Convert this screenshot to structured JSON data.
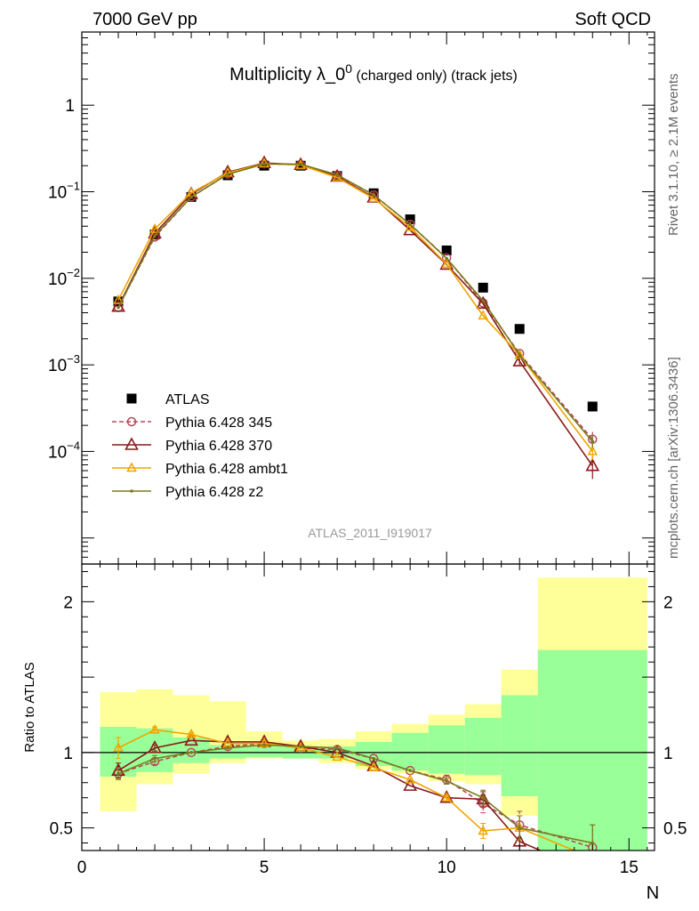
{
  "header": {
    "left": "7000 GeV pp",
    "right": "Soft QCD"
  },
  "title": {
    "main": "Multiplicity λ_0",
    "sup": "0",
    "sub": " (charged only) (track jets)"
  },
  "side_labels": {
    "rivet": "Rivet 3.1.10, ≥ 2.1M events",
    "mcplots": "mcplots.cern.ch [arXiv:1306.3436]"
  },
  "watermark": "ATLAS_2011_I919017",
  "colors": {
    "atlas": "#000000",
    "p345": "#b5495b",
    "p370": "#8b1a1a",
    "ambt1": "#f0a500",
    "z2": "#7a7a1a",
    "band_inner": "#99ff99",
    "band_outer": "#ffff99"
  },
  "chart_data": [
    {
      "type": "scatter",
      "yscale": "log",
      "xlim": [
        0,
        15.7
      ],
      "ylim": [
        5e-06,
        7
      ],
      "yticks": [
        {
          "value": 1,
          "label": "1"
        },
        {
          "value": 0.1,
          "label": "10",
          "exp": "−1"
        },
        {
          "value": 0.01,
          "label": "10",
          "exp": "−2"
        },
        {
          "value": 0.001,
          "label": "10",
          "exp": "−3"
        },
        {
          "value": 0.0001,
          "label": "10",
          "exp": "−4"
        }
      ],
      "legend_position": "lower-left",
      "series": [
        {
          "name": "ATLAS",
          "key": "atlas",
          "marker": "square",
          "x": [
            1,
            2,
            3,
            4,
            5,
            6,
            7,
            8,
            9,
            10,
            11,
            12,
            14
          ],
          "y": [
            0.0054,
            0.032,
            0.087,
            0.155,
            0.2,
            0.2,
            0.152,
            0.096,
            0.048,
            0.021,
            0.0078,
            0.0026,
            0.00033
          ]
        },
        {
          "name": "Pythia 6.428 345",
          "key": "p345",
          "marker": "circle",
          "dash": "5,3",
          "x": [
            1,
            2,
            3,
            4,
            5,
            6,
            7,
            8,
            9,
            10,
            11,
            12,
            14
          ],
          "y": [
            0.0046,
            0.03,
            0.087,
            0.16,
            0.21,
            0.205,
            0.155,
            0.092,
            0.042,
            0.0172,
            0.0052,
            0.00135,
            0.000138
          ],
          "err": [
            0,
            0,
            0,
            0,
            0,
            0,
            0,
            0,
            0,
            0,
            0,
            0.0001,
            3e-05
          ]
        },
        {
          "name": "Pythia 6.428 370",
          "key": "p370",
          "marker": "triangle",
          "x": [
            1,
            2,
            3,
            4,
            5,
            6,
            7,
            8,
            9,
            10,
            11,
            12,
            14
          ],
          "y": [
            0.0047,
            0.033,
            0.094,
            0.168,
            0.215,
            0.205,
            0.15,
            0.086,
            0.036,
            0.0144,
            0.0051,
            0.0011,
            6.8e-05
          ],
          "err": [
            0,
            0,
            0,
            0,
            0,
            0,
            0,
            0,
            0,
            0,
            0,
            0.0001,
            2e-05
          ]
        },
        {
          "name": "Pythia 6.428 ambt1",
          "key": "ambt1",
          "marker": "triangle-small",
          "x": [
            1,
            2,
            3,
            4,
            5,
            6,
            7,
            8,
            9,
            10,
            11,
            12,
            14
          ],
          "y": [
            0.0056,
            0.037,
            0.097,
            0.165,
            0.212,
            0.203,
            0.146,
            0.084,
            0.039,
            0.0146,
            0.0037,
            0.0013,
            0.0001
          ],
          "err": [
            0,
            0,
            0,
            0,
            0,
            0,
            0,
            0,
            0,
            0,
            0,
            0.0001,
            2e-05
          ]
        },
        {
          "name": "Pythia 6.428 z2",
          "key": "z2",
          "marker": "dot",
          "x": [
            1,
            2,
            3,
            4,
            5,
            6,
            7,
            8,
            9,
            10,
            11,
            12,
            14
          ],
          "y": [
            0.0046,
            0.031,
            0.087,
            0.159,
            0.21,
            0.208,
            0.157,
            0.092,
            0.042,
            0.017,
            0.0055,
            0.0013,
            0.00013
          ],
          "err": [
            0,
            0,
            0,
            0,
            0,
            0,
            0,
            0,
            0,
            0,
            0,
            0.0001,
            2e-05
          ]
        }
      ]
    },
    {
      "type": "line",
      "ylabel": "Ratio to ATLAS",
      "xlabel": "N",
      "xlim": [
        0,
        15.7
      ],
      "ylim": [
        0.35,
        2.25
      ],
      "xticks": [
        0,
        5,
        10,
        15
      ],
      "yticks": [
        0.5,
        1,
        2
      ],
      "bands": [
        {
          "x0": 0.5,
          "x1": 1.5,
          "inner": [
            0.84,
            1.17
          ],
          "outer": [
            0.61,
            1.4
          ]
        },
        {
          "x0": 1.5,
          "x1": 2.5,
          "inner": [
            0.87,
            1.16
          ],
          "outer": [
            0.79,
            1.42
          ]
        },
        {
          "x0": 2.5,
          "x1": 3.5,
          "inner": [
            0.93,
            1.1
          ],
          "outer": [
            0.86,
            1.38
          ]
        },
        {
          "x0": 3.5,
          "x1": 4.5,
          "inner": [
            0.96,
            1.05
          ],
          "outer": [
            0.93,
            1.34
          ]
        },
        {
          "x0": 4.5,
          "x1": 5.5,
          "inner": [
            0.97,
            1.05
          ],
          "outer": [
            0.96,
            1.14
          ]
        },
        {
          "x0": 5.5,
          "x1": 6.5,
          "inner": [
            0.96,
            1.04
          ],
          "outer": [
            0.96,
            1.08
          ]
        },
        {
          "x0": 6.5,
          "x1": 7.5,
          "inner": [
            0.96,
            1.04
          ],
          "outer": [
            0.93,
            1.09
          ]
        },
        {
          "x0": 7.5,
          "x1": 8.5,
          "inner": [
            0.91,
            1.07
          ],
          "outer": [
            0.89,
            1.14
          ]
        },
        {
          "x0": 8.5,
          "x1": 9.5,
          "inner": [
            0.88,
            1.13
          ],
          "outer": [
            0.86,
            1.19
          ]
        },
        {
          "x0": 9.5,
          "x1": 10.5,
          "inner": [
            0.86,
            1.18
          ],
          "outer": [
            0.81,
            1.25
          ]
        },
        {
          "x0": 10.5,
          "x1": 11.5,
          "inner": [
            0.85,
            1.23
          ],
          "outer": [
            0.79,
            1.32
          ]
        },
        {
          "x0": 11.5,
          "x1": 12.5,
          "inner": [
            0.71,
            1.38
          ],
          "outer": [
            0.58,
            1.55
          ]
        },
        {
          "x0": 12.5,
          "x1": 15.5,
          "inner": [
            0.35,
            1.68
          ],
          "outer": [
            0.35,
            2.16
          ]
        }
      ],
      "series": [
        {
          "name": "Pythia 6.428 345",
          "key": "p345",
          "marker": "circle",
          "dash": "5,3",
          "x": [
            1,
            2,
            3,
            4,
            5,
            6,
            7,
            8,
            9,
            10,
            11,
            12,
            14
          ],
          "y": [
            0.86,
            0.94,
            1.0,
            1.04,
            1.06,
            1.03,
            1.02,
            0.96,
            0.88,
            0.82,
            0.66,
            0.52,
            0.37
          ],
          "err": [
            0.03,
            0.02,
            0,
            0,
            0,
            0,
            0,
            0,
            0,
            0.03,
            0.06,
            0.09,
            0.15
          ]
        },
        {
          "name": "Pythia 6.428 370",
          "key": "p370",
          "marker": "triangle",
          "x": [
            1,
            2,
            3,
            4,
            5,
            6,
            7,
            8,
            9,
            10,
            11,
            12,
            14
          ],
          "y": [
            0.88,
            1.03,
            1.08,
            1.07,
            1.07,
            1.04,
            1.0,
            0.91,
            0.78,
            0.7,
            0.69,
            0.41,
            0.2
          ],
          "err": [
            0.05,
            0.02,
            0,
            0,
            0,
            0,
            0,
            0,
            0,
            0.02,
            0.05,
            0.08,
            0.1
          ]
        },
        {
          "name": "Pythia 6.428 ambt1",
          "key": "ambt1",
          "marker": "triangle-small",
          "x": [
            1,
            2,
            3,
            4,
            5,
            6,
            7,
            8,
            9,
            10,
            11,
            12,
            14
          ],
          "y": [
            1.03,
            1.15,
            1.12,
            1.06,
            1.06,
            1.03,
            0.97,
            0.9,
            0.82,
            0.7,
            0.48,
            0.5,
            0.3
          ],
          "err": [
            0.07,
            0.02,
            0.01,
            0,
            0,
            0,
            0,
            0,
            0,
            0.02,
            0.05,
            0.08,
            0.1
          ]
        },
        {
          "name": "Pythia 6.428 z2",
          "key": "z2",
          "marker": "dot",
          "x": [
            1,
            2,
            3,
            4,
            5,
            6,
            7,
            8,
            9,
            10,
            11,
            12,
            14
          ],
          "y": [
            0.86,
            0.96,
            1.0,
            1.03,
            1.05,
            1.04,
            1.03,
            0.96,
            0.88,
            0.81,
            0.7,
            0.5,
            0.4
          ],
          "err": [
            0.04,
            0.02,
            0,
            0,
            0,
            0,
            0,
            0,
            0,
            0.02,
            0.05,
            0.08,
            0.12
          ]
        }
      ]
    }
  ]
}
